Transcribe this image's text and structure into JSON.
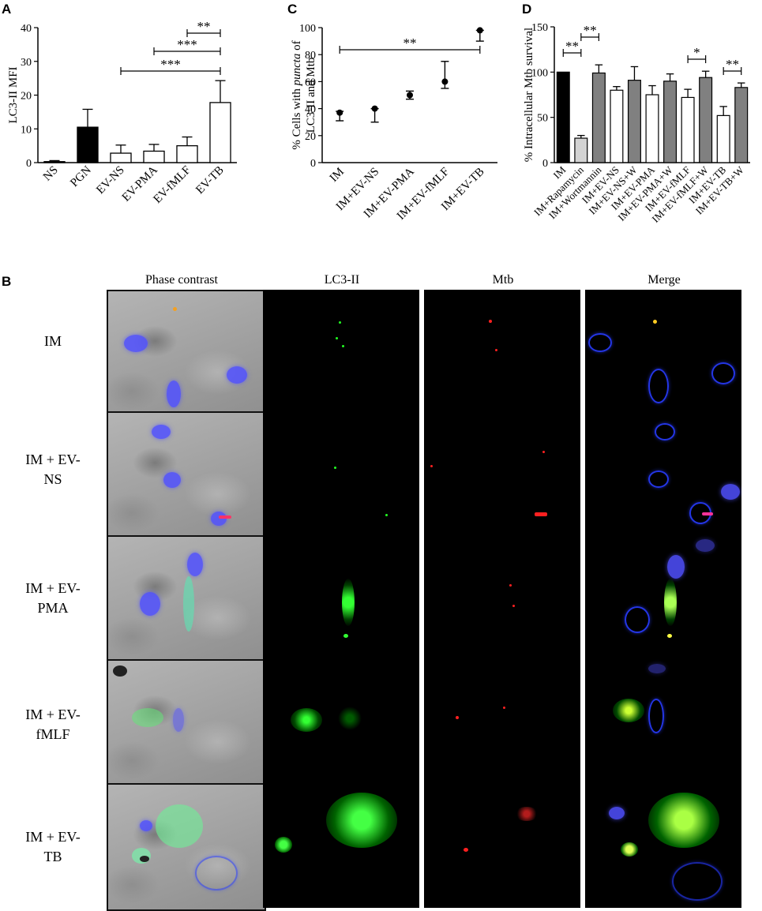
{
  "panel_letters": {
    "a": "A",
    "b": "B",
    "c": "C",
    "d": "D"
  },
  "chart_data": [
    {
      "panel": "A",
      "type": "bar",
      "ylabel": "LC3-II MFI",
      "ylim": [
        0,
        40
      ],
      "yticks": [
        "0",
        "10",
        "20",
        "30",
        "40"
      ],
      "categories": [
        "NS",
        "PGN",
        "EV-NS",
        "EV-PMA",
        "EV-fMLF",
        "EV-TB"
      ],
      "values": [
        0.3,
        10.5,
        2.8,
        3.4,
        5.0,
        17.8
      ],
      "errors": [
        0.3,
        5.3,
        2.4,
        2.0,
        2.6,
        6.5
      ],
      "fills": [
        "#ffffff",
        "#000000",
        "#ffffff",
        "#ffffff",
        "#ffffff",
        "#ffffff"
      ],
      "significance": [
        {
          "from": 2,
          "to": 5,
          "label": "***"
        },
        {
          "from": 3,
          "to": 5,
          "label": "***"
        },
        {
          "from": 4,
          "to": 5,
          "label": "**"
        }
      ]
    },
    {
      "panel": "C",
      "type": "scatter",
      "ylabel_parts": [
        "% Cells with ",
        "puncta",
        " of",
        "LC3-II and Mtb"
      ],
      "ylim": [
        0,
        100
      ],
      "yticks": [
        "0",
        "20",
        "40",
        "60",
        "80",
        "100"
      ],
      "categories": [
        "IM",
        "IM+EV-NS",
        "IM+EV-PMA",
        "IM+EV-fMLF",
        "IM+EV-TB"
      ],
      "values": [
        37,
        40,
        50,
        60,
        98
      ],
      "err_low": [
        6,
        10,
        3,
        5,
        8
      ],
      "err_high": [
        1,
        0,
        3,
        15,
        0
      ],
      "significance": [
        {
          "from": 0,
          "to": 4,
          "label": "**"
        }
      ]
    },
    {
      "panel": "D",
      "type": "bar",
      "ylabel": "% Intracellular Mtb survival",
      "ylim": [
        0,
        150
      ],
      "yticks": [
        "0",
        "50",
        "100",
        "150"
      ],
      "categories": [
        "IM",
        "IM+Rapamycin",
        "IM+Wortmannin",
        "IM+EV-NS",
        "IM+EV-NS+W",
        "IM+EV-PMA",
        "IM+EV-PMA+W",
        "IM+EV-fMLF",
        "IM+EV-fMLF+W",
        "IM+EV-TB",
        "IM+EV-TB+W"
      ],
      "values": [
        100,
        27,
        99,
        80,
        91,
        75,
        90,
        72,
        94,
        52,
        83
      ],
      "errors": [
        0,
        3,
        9,
        4,
        15,
        10,
        8,
        9,
        7,
        10,
        5
      ],
      "fills": [
        "#000000",
        "#d3d3d3",
        "#808080",
        "#ffffff",
        "#808080",
        "#ffffff",
        "#808080",
        "#ffffff",
        "#808080",
        "#ffffff",
        "#808080"
      ],
      "significance": [
        {
          "from": 0,
          "to": 1,
          "label": "**"
        },
        {
          "from": 1,
          "to": 2,
          "label": "**"
        },
        {
          "from": 7,
          "to": 8,
          "label": "*"
        },
        {
          "from": 9,
          "to": 10,
          "label": "**"
        }
      ]
    }
  ],
  "micrographs": {
    "columns": [
      "Phase contrast",
      "LC3-II",
      "Mtb",
      "Merge"
    ],
    "rows": [
      {
        "label_lines": [
          "IM"
        ]
      },
      {
        "label_lines": [
          "IM + EV-",
          "NS"
        ]
      },
      {
        "label_lines": [
          "IM + EV-",
          "PMA"
        ]
      },
      {
        "label_lines": [
          "IM + EV-",
          "fMLF"
        ]
      },
      {
        "label_lines": [
          "IM + EV-",
          "TB"
        ]
      }
    ]
  },
  "colors": {
    "lc3": "#22ff22",
    "mtb": "#ff2020",
    "dapi": "#3a3aff"
  }
}
